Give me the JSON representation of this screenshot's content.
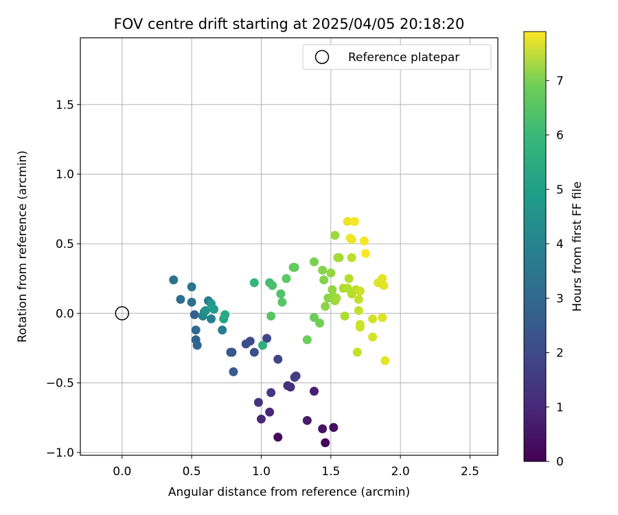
{
  "chart_data": {
    "type": "scatter",
    "title": "FOV centre drift starting at 2025/04/05 20:18:20",
    "xlabel": "Angular distance from reference (arcmin)",
    "ylabel": "Rotation from reference (arcmin)",
    "xlim": [
      -0.3,
      2.7
    ],
    "ylim": [
      -1.02,
      1.98
    ],
    "xticks": [
      0.0,
      0.5,
      1.0,
      1.5,
      2.0,
      2.5
    ],
    "xtick_labels": [
      "0.0",
      "0.5",
      "1.0",
      "1.5",
      "2.0",
      "2.5"
    ],
    "yticks": [
      -1.0,
      -0.5,
      0.0,
      0.5,
      1.0,
      1.5
    ],
    "ytick_labels": [
      "−1.0",
      "−0.5",
      "0.0",
      "0.5",
      "1.0",
      "1.5"
    ],
    "grid": true,
    "legend": {
      "position": "top-right",
      "label": "Reference platepar"
    },
    "reference_point": {
      "x": 0.0,
      "y": 0.0
    },
    "colorbar": {
      "label": "Hours from first FF file",
      "min": 0,
      "max": 7.9,
      "ticks": [
        0,
        1,
        2,
        3,
        4,
        5,
        6,
        7
      ],
      "colormap": "viridis"
    },
    "series": [
      {
        "points": [
          {
            "x": 1.46,
            "y": -0.93,
            "c": 0.1
          },
          {
            "x": 1.12,
            "y": -0.89,
            "c": 0.2
          },
          {
            "x": 1.52,
            "y": -0.82,
            "c": 0.3
          },
          {
            "x": 1.44,
            "y": -0.83,
            "c": 0.4
          },
          {
            "x": 1.33,
            "y": -0.77,
            "c": 0.6
          },
          {
            "x": 1.38,
            "y": -0.56,
            "c": 0.7
          },
          {
            "x": 1.06,
            "y": -0.71,
            "c": 0.8
          },
          {
            "x": 1.0,
            "y": -0.76,
            "c": 0.9
          },
          {
            "x": 1.21,
            "y": -0.53,
            "c": 1.0
          },
          {
            "x": 1.19,
            "y": -0.52,
            "c": 1.1
          },
          {
            "x": 0.98,
            "y": -0.64,
            "c": 1.2
          },
          {
            "x": 1.07,
            "y": -0.57,
            "c": 1.3
          },
          {
            "x": 1.24,
            "y": -0.46,
            "c": 1.4
          },
          {
            "x": 1.25,
            "y": -0.45,
            "c": 1.5
          },
          {
            "x": 1.12,
            "y": -0.33,
            "c": 1.6
          },
          {
            "x": 1.04,
            "y": -0.18,
            "c": 1.7
          },
          {
            "x": 0.92,
            "y": -0.2,
            "c": 1.8
          },
          {
            "x": 0.89,
            "y": -0.22,
            "c": 1.9
          },
          {
            "x": 0.95,
            "y": -0.28,
            "c": 2.0
          },
          {
            "x": 0.79,
            "y": -0.28,
            "c": 2.1
          },
          {
            "x": 0.78,
            "y": -0.28,
            "c": 2.2
          },
          {
            "x": 0.8,
            "y": -0.42,
            "c": 2.3
          },
          {
            "x": 0.52,
            "y": -0.01,
            "c": 2.4
          },
          {
            "x": 0.53,
            "y": -0.19,
            "c": 2.5
          },
          {
            "x": 0.54,
            "y": -0.23,
            "c": 2.6
          },
          {
            "x": 0.53,
            "y": -0.12,
            "c": 2.7
          },
          {
            "x": 0.42,
            "y": 0.1,
            "c": 2.8
          },
          {
            "x": 0.5,
            "y": 0.08,
            "c": 2.9
          },
          {
            "x": 0.37,
            "y": 0.24,
            "c": 3.0
          },
          {
            "x": 0.5,
            "y": 0.19,
            "c": 3.1
          },
          {
            "x": 0.62,
            "y": 0.09,
            "c": 3.2
          },
          {
            "x": 0.72,
            "y": -0.12,
            "c": 3.3
          },
          {
            "x": 0.64,
            "y": -0.04,
            "c": 3.4
          },
          {
            "x": 0.58,
            "y": -0.02,
            "c": 3.6
          },
          {
            "x": 0.59,
            "y": 0.01,
            "c": 3.8
          },
          {
            "x": 0.6,
            "y": 0.02,
            "c": 4.0
          },
          {
            "x": 0.64,
            "y": 0.07,
            "c": 4.2
          },
          {
            "x": 0.66,
            "y": 0.03,
            "c": 4.4
          },
          {
            "x": 0.73,
            "y": -0.04,
            "c": 4.6
          },
          {
            "x": 0.74,
            "y": -0.01,
            "c": 4.8
          },
          {
            "x": 1.01,
            "y": -0.23,
            "c": 5.0
          },
          {
            "x": 0.95,
            "y": 0.22,
            "c": 5.2
          },
          {
            "x": 1.06,
            "y": 0.22,
            "c": 5.5
          },
          {
            "x": 1.08,
            "y": 0.2,
            "c": 5.6
          },
          {
            "x": 1.14,
            "y": 0.14,
            "c": 5.7
          },
          {
            "x": 1.15,
            "y": 0.08,
            "c": 5.8
          },
          {
            "x": 1.07,
            "y": -0.02,
            "c": 5.8
          },
          {
            "x": 1.18,
            "y": 0.25,
            "c": 5.9
          },
          {
            "x": 1.23,
            "y": 0.33,
            "c": 6.0
          },
          {
            "x": 1.24,
            "y": 0.33,
            "c": 6.0
          },
          {
            "x": 1.33,
            "y": -0.19,
            "c": 6.1
          },
          {
            "x": 1.38,
            "y": -0.03,
            "c": 6.1
          },
          {
            "x": 1.42,
            "y": -0.07,
            "c": 6.2
          },
          {
            "x": 1.38,
            "y": 0.37,
            "c": 6.3
          },
          {
            "x": 1.44,
            "y": 0.31,
            "c": 6.4
          },
          {
            "x": 1.45,
            "y": 0.24,
            "c": 6.4
          },
          {
            "x": 1.46,
            "y": 0.05,
            "c": 6.5
          },
          {
            "x": 1.48,
            "y": 0.11,
            "c": 6.5
          },
          {
            "x": 1.5,
            "y": 0.29,
            "c": 6.6
          },
          {
            "x": 1.51,
            "y": 0.17,
            "c": 6.6
          },
          {
            "x": 1.52,
            "y": 0.12,
            "c": 6.6
          },
          {
            "x": 1.53,
            "y": 0.56,
            "c": 6.7
          },
          {
            "x": 1.53,
            "y": 0.09,
            "c": 6.7
          },
          {
            "x": 1.54,
            "y": 0.11,
            "c": 6.8
          },
          {
            "x": 1.55,
            "y": 0.4,
            "c": 6.8
          },
          {
            "x": 1.56,
            "y": 0.4,
            "c": 6.8
          },
          {
            "x": 1.59,
            "y": 0.18,
            "c": 6.9
          },
          {
            "x": 1.6,
            "y": -0.02,
            "c": 6.9
          },
          {
            "x": 1.62,
            "y": 0.18,
            "c": 7.0
          },
          {
            "x": 1.63,
            "y": 0.25,
            "c": 7.0
          },
          {
            "x": 1.65,
            "y": 0.14,
            "c": 7.0
          },
          {
            "x": 1.65,
            "y": 0.4,
            "c": 7.1
          },
          {
            "x": 1.68,
            "y": 0.17,
            "c": 7.1
          },
          {
            "x": 1.69,
            "y": -0.28,
            "c": 7.2
          },
          {
            "x": 1.7,
            "y": 0.1,
            "c": 7.2
          },
          {
            "x": 1.7,
            "y": 0.02,
            "c": 7.2
          },
          {
            "x": 1.71,
            "y": -0.08,
            "c": 7.3
          },
          {
            "x": 1.71,
            "y": -0.1,
            "c": 7.3
          },
          {
            "x": 1.71,
            "y": 0.16,
            "c": 7.3
          },
          {
            "x": 1.8,
            "y": -0.17,
            "c": 7.4
          },
          {
            "x": 1.8,
            "y": -0.04,
            "c": 7.4
          },
          {
            "x": 1.84,
            "y": 0.22,
            "c": 7.5
          },
          {
            "x": 1.87,
            "y": -0.03,
            "c": 7.5
          },
          {
            "x": 1.88,
            "y": 0.2,
            "c": 7.6
          },
          {
            "x": 1.87,
            "y": 0.25,
            "c": 7.6
          },
          {
            "x": 1.89,
            "y": -0.34,
            "c": 7.6
          },
          {
            "x": 1.64,
            "y": 0.54,
            "c": 7.7
          },
          {
            "x": 1.65,
            "y": 0.53,
            "c": 7.7
          },
          {
            "x": 1.62,
            "y": 0.66,
            "c": 7.7
          },
          {
            "x": 1.67,
            "y": 0.66,
            "c": 7.8
          },
          {
            "x": 1.74,
            "y": 0.52,
            "c": 7.8
          },
          {
            "x": 1.75,
            "y": 0.43,
            "c": 7.9
          }
        ]
      }
    ]
  }
}
